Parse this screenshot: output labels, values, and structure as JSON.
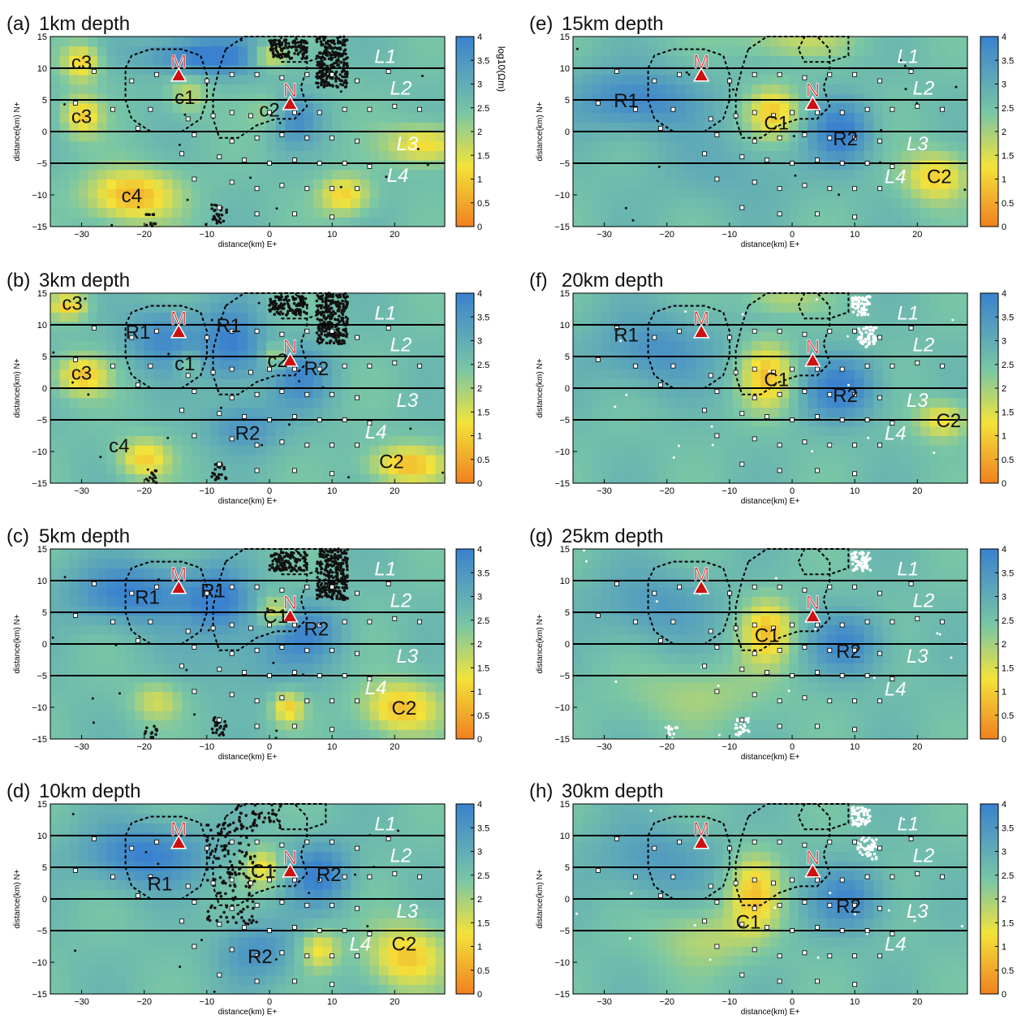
{
  "figure": {
    "colorbar": {
      "label": "log10(Ωm)",
      "ticks": [
        0,
        0.5,
        1,
        1.5,
        2,
        2.5,
        3,
        3.5,
        4
      ],
      "range": [
        0,
        4
      ]
    },
    "colormap": {
      "low": "#f08020",
      "mid1": "#f3e33a",
      "mid2": "#79c6a6",
      "high": "#3a82cf"
    },
    "marker_color": "#cc1111"
  },
  "chart_data": [
    {
      "type": "heatmap",
      "panel": "(a)",
      "title": "1km depth",
      "xlabel": "distance(km) E+",
      "ylabel": "distance(km) N+",
      "xlim": [
        -35,
        28
      ],
      "ylim": [
        -15,
        15
      ],
      "xticks": [
        -30,
        -20,
        -10,
        0,
        10,
        20
      ],
      "yticks": [
        -15,
        -10,
        -5,
        0,
        5,
        10,
        15
      ],
      "profile_lines_y": [
        10,
        5,
        0,
        -5
      ],
      "line_labels": [
        {
          "text": "L1",
          "x": 18.5,
          "y": 12
        },
        {
          "text": "L2",
          "x": 21,
          "y": 7
        },
        {
          "text": "L3",
          "x": 22,
          "y": -1.8
        },
        {
          "text": "L4",
          "x": 20.5,
          "y": -6.8
        }
      ],
      "volcanoes": [
        {
          "label": "M",
          "x": -14.5,
          "y": 9
        },
        {
          "label": "N",
          "x": 3.3,
          "y": 4.5
        }
      ],
      "anomaly_labels": [
        {
          "text": "c3",
          "x": -30,
          "y": 11
        },
        {
          "text": "c3",
          "x": -30,
          "y": 2.5
        },
        {
          "text": "c1",
          "x": -13.5,
          "y": 5.5
        },
        {
          "text": "c2",
          "x": 0,
          "y": 3.5
        },
        {
          "text": "c4",
          "x": -22,
          "y": -10
        }
      ],
      "seismicity_color": "#111111",
      "seismicity_clusters": [
        "NE",
        "W"
      ]
    },
    {
      "type": "heatmap",
      "panel": "(b)",
      "title": "3km depth",
      "xlabel": "distance(km) E+",
      "ylabel": "distance(km) N+",
      "xlim": [
        -35,
        28
      ],
      "ylim": [
        -15,
        15
      ],
      "xticks": [
        -30,
        -20,
        -10,
        0,
        10,
        20
      ],
      "yticks": [
        -15,
        -10,
        -5,
        0,
        5,
        10,
        15
      ],
      "profile_lines_y": [
        10,
        5,
        0,
        -5
      ],
      "line_labels": [
        {
          "text": "L1",
          "x": 18.5,
          "y": 12
        },
        {
          "text": "L2",
          "x": 21,
          "y": 7
        },
        {
          "text": "L3",
          "x": 22,
          "y": -1.8
        },
        {
          "text": "L4",
          "x": 17,
          "y": -6.8
        }
      ],
      "volcanoes": [
        {
          "label": "M",
          "x": -14.5,
          "y": 9
        },
        {
          "label": "N",
          "x": 3.3,
          "y": 4.5
        }
      ],
      "anomaly_labels": [
        {
          "text": "c3",
          "x": -31.5,
          "y": 13.5
        },
        {
          "text": "c3",
          "x": -30,
          "y": 2.5
        },
        {
          "text": "R1",
          "x": -21,
          "y": 9
        },
        {
          "text": "R1",
          "x": -6.5,
          "y": 10
        },
        {
          "text": "c1",
          "x": -13.5,
          "y": 4
        },
        {
          "text": "c2",
          "x": 1.3,
          "y": 4.5
        },
        {
          "text": "R2",
          "x": 7.5,
          "y": 3.2
        },
        {
          "text": "R2",
          "x": -3.5,
          "y": -7
        },
        {
          "text": "c4",
          "x": -24,
          "y": -9
        },
        {
          "text": "C2",
          "x": 19.5,
          "y": -11.5
        }
      ],
      "seismicity_color": "#111111",
      "seismicity_clusters": [
        "NE",
        "W"
      ]
    },
    {
      "type": "heatmap",
      "panel": "(c)",
      "title": "5km depth",
      "xlabel": "distance(km) E+",
      "ylabel": "distance(km) N+",
      "xlim": [
        -35,
        28
      ],
      "ylim": [
        -15,
        15
      ],
      "xticks": [
        -30,
        -20,
        -10,
        0,
        10,
        20
      ],
      "yticks": [
        -15,
        -10,
        -5,
        0,
        5,
        10,
        15
      ],
      "profile_lines_y": [
        10,
        5,
        0,
        -5
      ],
      "line_labels": [
        {
          "text": "L1",
          "x": 18.5,
          "y": 12
        },
        {
          "text": "L2",
          "x": 21,
          "y": 7
        },
        {
          "text": "L3",
          "x": 22,
          "y": -1.8
        },
        {
          "text": "L4",
          "x": 17,
          "y": -6.8
        }
      ],
      "volcanoes": [
        {
          "label": "M",
          "x": -14.5,
          "y": 9
        },
        {
          "label": "N",
          "x": 3.3,
          "y": 4.5
        }
      ],
      "anomaly_labels": [
        {
          "text": "R1",
          "x": -19.5,
          "y": 7.5
        },
        {
          "text": "R1",
          "x": -9,
          "y": 8.5
        },
        {
          "text": "C1",
          "x": 1,
          "y": 4.5
        },
        {
          "text": "R2",
          "x": 7.5,
          "y": 2.5
        },
        {
          "text": "C2",
          "x": 21.5,
          "y": -10
        }
      ],
      "seismicity_color": "#111111",
      "seismicity_clusters": [
        "NE",
        "W"
      ]
    },
    {
      "type": "heatmap",
      "panel": "(d)",
      "title": "10km depth",
      "xlabel": "distance(km) E+",
      "ylabel": "distance(km) N+",
      "xlim": [
        -35,
        28
      ],
      "ylim": [
        -15,
        15
      ],
      "xticks": [
        -30,
        -20,
        -10,
        0,
        10,
        20
      ],
      "yticks": [
        -15,
        -10,
        -5,
        0,
        5,
        10,
        15
      ],
      "profile_lines_y": [
        10,
        5,
        0,
        -5
      ],
      "line_labels": [
        {
          "text": "L1",
          "x": 18.5,
          "y": 12
        },
        {
          "text": "L2",
          "x": 21,
          "y": 7
        },
        {
          "text": "L3",
          "x": 22,
          "y": -1.8
        },
        {
          "text": "L4",
          "x": 14.5,
          "y": -7
        }
      ],
      "volcanoes": [
        {
          "label": "M",
          "x": -14.5,
          "y": 9
        },
        {
          "label": "N",
          "x": 3.3,
          "y": 4.5
        }
      ],
      "anomaly_labels": [
        {
          "text": "R1",
          "x": -17.5,
          "y": 2.5
        },
        {
          "text": "C1",
          "x": -1,
          "y": 4.5
        },
        {
          "text": "R2",
          "x": 9.5,
          "y": 4
        },
        {
          "text": "R2",
          "x": -1.5,
          "y": -9
        },
        {
          "text": "C2",
          "x": 21.5,
          "y": -7
        }
      ],
      "seismicity_color": "#111111",
      "seismicity_clusters": [
        "W-center"
      ]
    },
    {
      "type": "heatmap",
      "panel": "(e)",
      "title": "15km depth",
      "xlabel": "distance(km) E+",
      "ylabel": "distance(km) N+",
      "xlim": [
        -35,
        28
      ],
      "ylim": [
        -15,
        15
      ],
      "xticks": [
        -30,
        -20,
        -10,
        0,
        10,
        20
      ],
      "yticks": [
        -15,
        -10,
        -5,
        0,
        5,
        10,
        15
      ],
      "profile_lines_y": [
        10,
        5,
        0,
        -5
      ],
      "line_labels": [
        {
          "text": "L1",
          "x": 18.5,
          "y": 12
        },
        {
          "text": "L2",
          "x": 21,
          "y": 7
        },
        {
          "text": "L3",
          "x": 20,
          "y": -1.8
        },
        {
          "text": "L4",
          "x": 16.5,
          "y": -7
        }
      ],
      "volcanoes": [
        {
          "label": "M",
          "x": -14.5,
          "y": 9
        },
        {
          "label": "N",
          "x": 3.3,
          "y": 4.5
        }
      ],
      "anomaly_labels": [
        {
          "text": "R1",
          "x": -26.5,
          "y": 5
        },
        {
          "text": "C1",
          "x": -2.5,
          "y": 1.5
        },
        {
          "text": "R2",
          "x": 8.5,
          "y": -1
        },
        {
          "text": "C2",
          "x": 23.5,
          "y": -7
        }
      ],
      "seismicity_color": "#111111",
      "seismicity_clusters": []
    },
    {
      "type": "heatmap",
      "panel": "(f)",
      "title": "20km depth",
      "xlabel": "distance(km) E+",
      "ylabel": "distance(km) N+",
      "xlim": [
        -35,
        28
      ],
      "ylim": [
        -15,
        15
      ],
      "xticks": [
        -30,
        -20,
        -10,
        0,
        10,
        20
      ],
      "yticks": [
        -15,
        -10,
        -5,
        0,
        5,
        10,
        15
      ],
      "profile_lines_y": [
        10,
        5,
        0,
        -5
      ],
      "line_labels": [
        {
          "text": "L1",
          "x": 18.5,
          "y": 12
        },
        {
          "text": "L2",
          "x": 21,
          "y": 7
        },
        {
          "text": "L3",
          "x": 20,
          "y": -1.8
        },
        {
          "text": "L4",
          "x": 16.5,
          "y": -7
        }
      ],
      "volcanoes": [
        {
          "label": "M",
          "x": -14.5,
          "y": 9
        },
        {
          "label": "N",
          "x": 3.3,
          "y": 4.5
        }
      ],
      "anomaly_labels": [
        {
          "text": "R1",
          "x": -26.5,
          "y": 8.5
        },
        {
          "text": "C1",
          "x": -2.5,
          "y": 1.5
        },
        {
          "text": "R2",
          "x": 8.5,
          "y": -1
        },
        {
          "text": "C2",
          "x": 25,
          "y": -5
        }
      ],
      "seismicity_color": "#ffffff",
      "seismicity_clusters": [
        "NE-upper",
        "NE-lower"
      ]
    },
    {
      "type": "heatmap",
      "panel": "(g)",
      "title": "25km depth",
      "xlabel": "distance(km) E+",
      "ylabel": "distance(km) N+",
      "xlim": [
        -35,
        28
      ],
      "ylim": [
        -15,
        15
      ],
      "xticks": [
        -30,
        -20,
        -10,
        0,
        10,
        20
      ],
      "yticks": [
        -15,
        -10,
        -5,
        0,
        5,
        10,
        15
      ],
      "profile_lines_y": [
        10,
        5,
        0,
        -5
      ],
      "line_labels": [
        {
          "text": "L1",
          "x": 18.5,
          "y": 12
        },
        {
          "text": "L2",
          "x": 21,
          "y": 7
        },
        {
          "text": "L3",
          "x": 20,
          "y": -1.8
        },
        {
          "text": "L4",
          "x": 16.5,
          "y": -7
        }
      ],
      "volcanoes": [
        {
          "label": "M",
          "x": -14.5,
          "y": 9
        },
        {
          "label": "N",
          "x": 3.3,
          "y": 4.5
        }
      ],
      "anomaly_labels": [
        {
          "text": "C1",
          "x": -4,
          "y": 1.5
        },
        {
          "text": "R2",
          "x": 9,
          "y": -1
        }
      ],
      "seismicity_color": "#ffffff",
      "seismicity_clusters": [
        "NE-upper",
        "W"
      ]
    },
    {
      "type": "heatmap",
      "panel": "(h)",
      "title": "30km depth",
      "xlabel": "distance(km) E+",
      "ylabel": "distance(km) N+",
      "xlim": [
        -35,
        28
      ],
      "ylim": [
        -15,
        15
      ],
      "xticks": [
        -30,
        -20,
        -10,
        0,
        10,
        20
      ],
      "yticks": [
        -15,
        -10,
        -5,
        0,
        5,
        10,
        15
      ],
      "profile_lines_y": [
        10,
        5,
        0,
        -5
      ],
      "line_labels": [
        {
          "text": "L1",
          "x": 18.5,
          "y": 12
        },
        {
          "text": "L2",
          "x": 21,
          "y": 7
        },
        {
          "text": "L3",
          "x": 20,
          "y": -1.8
        },
        {
          "text": "L4",
          "x": 16.5,
          "y": -7
        }
      ],
      "volcanoes": [
        {
          "label": "M",
          "x": -14.5,
          "y": 9
        },
        {
          "label": "N",
          "x": 3.3,
          "y": 4.5
        }
      ],
      "anomaly_labels": [
        {
          "text": "C1",
          "x": -7,
          "y": -3.5
        },
        {
          "text": "R2",
          "x": 9,
          "y": -1
        }
      ],
      "seismicity_color": "#ffffff",
      "seismicity_clusters": [
        "NE-upper",
        "NE-lower"
      ]
    }
  ]
}
